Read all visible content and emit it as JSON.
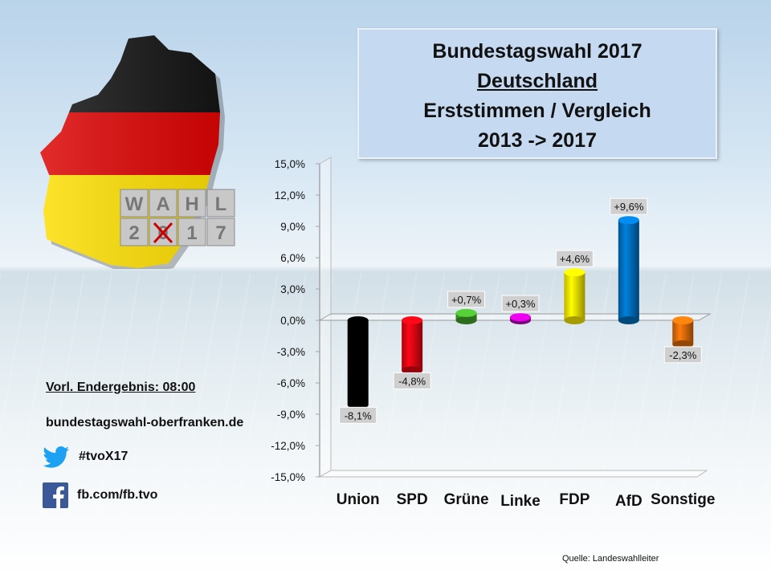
{
  "title": {
    "line1": "Bundestagswahl 2017",
    "line2": "Deutschland",
    "line3": "Erststimmen / Vergleich",
    "line4": "2013 -> 2017"
  },
  "logo": {
    "icon": "germany-map-flag-icon",
    "text_top": "WAHL",
    "text_bottom": "2017"
  },
  "info": {
    "result_label": "Vorl. Endergebnis: 08:00",
    "website": "bundestagswahl-oberfranken.de",
    "twitter": {
      "icon": "twitter-bird-icon",
      "handle": "#tvoX17"
    },
    "facebook": {
      "icon": "facebook-icon",
      "handle": "fb.com/fb.tvo"
    }
  },
  "source": "Quelle: Landeswahlleiter",
  "chart_data": {
    "type": "bar",
    "categories": [
      "Union",
      "SPD",
      "Grüne",
      "Linke",
      "FDP",
      "AfD",
      "Sonstige"
    ],
    "values": [
      -8.1,
      -4.8,
      0.7,
      0.3,
      4.6,
      9.6,
      -2.3
    ],
    "value_labels": [
      "-8,1%",
      "-4,8%",
      "+0,7%",
      "+0,3%",
      "+4,6%",
      "+9,6%",
      "-2,3%"
    ],
    "colors": [
      "#000000",
      "#e30613",
      "#43a82c",
      "#c000c0",
      "#ffee00",
      "#0070c0",
      "#e36c0a"
    ],
    "ylim": [
      -15,
      15
    ],
    "yticks": [
      15,
      12,
      9,
      6,
      3,
      0,
      -3,
      -6,
      -9,
      -12,
      -15
    ],
    "ytick_labels": [
      "15,0%",
      "12,0%",
      "9,0%",
      "6,0%",
      "3,0%",
      "0,0%",
      "-3,0%",
      "-6,0%",
      "-9,0%",
      "-12,0%",
      "-15,0%"
    ],
    "grid": false
  }
}
